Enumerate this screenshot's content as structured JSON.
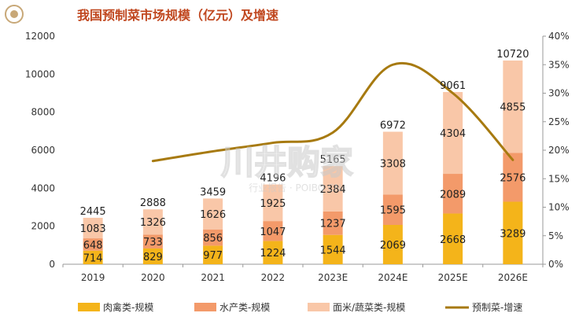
{
  "header": {
    "title": "我国预制菜市场规模（亿元）及增速"
  },
  "colors": {
    "meat": "#F4B41A",
    "aquatic": "#F39A6A",
    "noodle": "#F9C7A8",
    "growth_line": "#A77A10",
    "title": "#C0471F",
    "axis_text": "#333333",
    "axis_line": "#9a9a9a"
  },
  "watermark": {
    "main": "川井购家",
    "sub": "行业报告 · POIBO.CN"
  },
  "chart_data": {
    "type": "bar",
    "stacked": true,
    "categories": [
      "2019",
      "2020",
      "2021",
      "2022",
      "2023E",
      "2024E",
      "2025E",
      "2026E"
    ],
    "series": [
      {
        "name": "肉禽类-规模",
        "values": [
          714,
          829,
          977,
          1224,
          1544,
          2069,
          2668,
          3289
        ]
      },
      {
        "name": "水产类-规模",
        "values": [
          648,
          733,
          856,
          1047,
          1237,
          1595,
          2089,
          2576
        ]
      },
      {
        "name": "面米/蔬菜类-规模",
        "values": [
          1083,
          1326,
          1626,
          1925,
          2384,
          3308,
          4304,
          4855
        ]
      }
    ],
    "totals": [
      2445,
      2888,
      3459,
      4196,
      5165,
      6972,
      9061,
      10720
    ],
    "growth": {
      "name": "预制菜-增速",
      "type": "line",
      "axis": "right",
      "values": [
        null,
        18.1,
        19.8,
        21.3,
        23.1,
        35.0,
        30.0,
        18.3
      ]
    },
    "y_left": {
      "ylim": [
        0,
        12000
      ],
      "ticks": [
        "0",
        "2000",
        "4000",
        "6000",
        "8000",
        "10000",
        "12000"
      ]
    },
    "y_right": {
      "ylim": [
        0,
        40
      ],
      "ticks": [
        "0%",
        "5%",
        "10%",
        "15%",
        "20%",
        "25%",
        "30%",
        "35%",
        "40%"
      ]
    },
    "grid": false,
    "legend_position": "bottom"
  }
}
